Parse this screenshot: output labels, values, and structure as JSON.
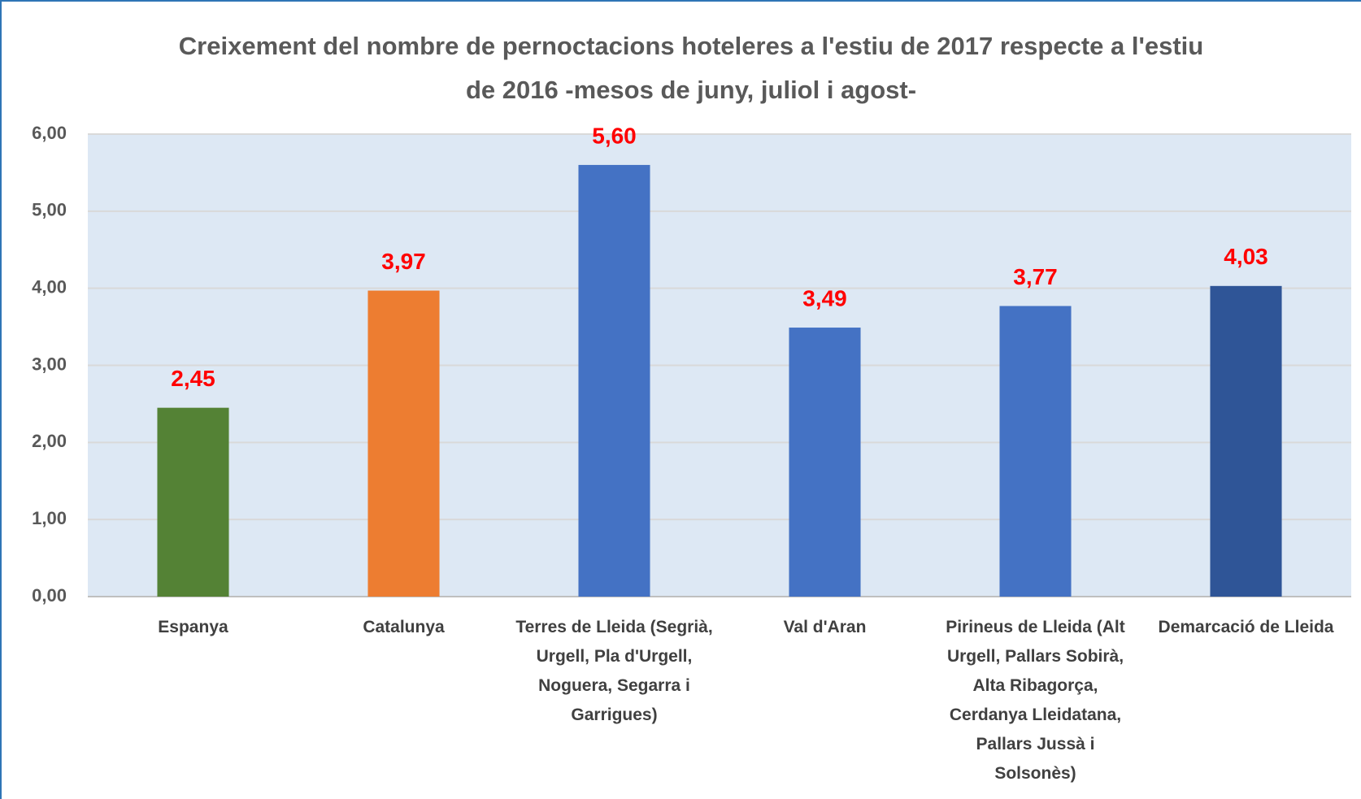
{
  "chart_data": {
    "type": "bar",
    "title": "Creixement del nombre de pernoctacions hoteleres a l'estiu de 2017 respecte a l'estiu de 2016 -mesos de juny, juliol i agost-",
    "categories": [
      "Espanya",
      "Catalunya",
      "Terres de Lleida (Segrià, Urgell, Pla d'Urgell, Noguera, Segarra i Garrigues)",
      "Val d'Aran",
      "Pirineus de Lleida (Alt Urgell, Pallars Sobirà, Alta Ribagorça, Cerdanya Lleidatana, Pallars Jussà i Solsonès)",
      "Demarcació de Lleida"
    ],
    "values": [
      2.45,
      3.97,
      5.6,
      3.49,
      3.77,
      4.03
    ],
    "value_labels": [
      "2,45",
      "3,97",
      "5,60",
      "3,49",
      "3,77",
      "4,03"
    ],
    "colors": [
      "#548235",
      "#ed7d31",
      "#4472c4",
      "#4472c4",
      "#4472c4",
      "#2f5597"
    ],
    "ylim": [
      0,
      6
    ],
    "yticks": [
      {
        "value": 0,
        "label": "0,00"
      },
      {
        "value": 1,
        "label": "1,00"
      },
      {
        "value": 2,
        "label": "2,00"
      },
      {
        "value": 3,
        "label": "3,00"
      },
      {
        "value": 4,
        "label": "4,00"
      },
      {
        "value": 5,
        "label": "5,00"
      },
      {
        "value": 6,
        "label": "6,00"
      }
    ],
    "grid": true
  }
}
